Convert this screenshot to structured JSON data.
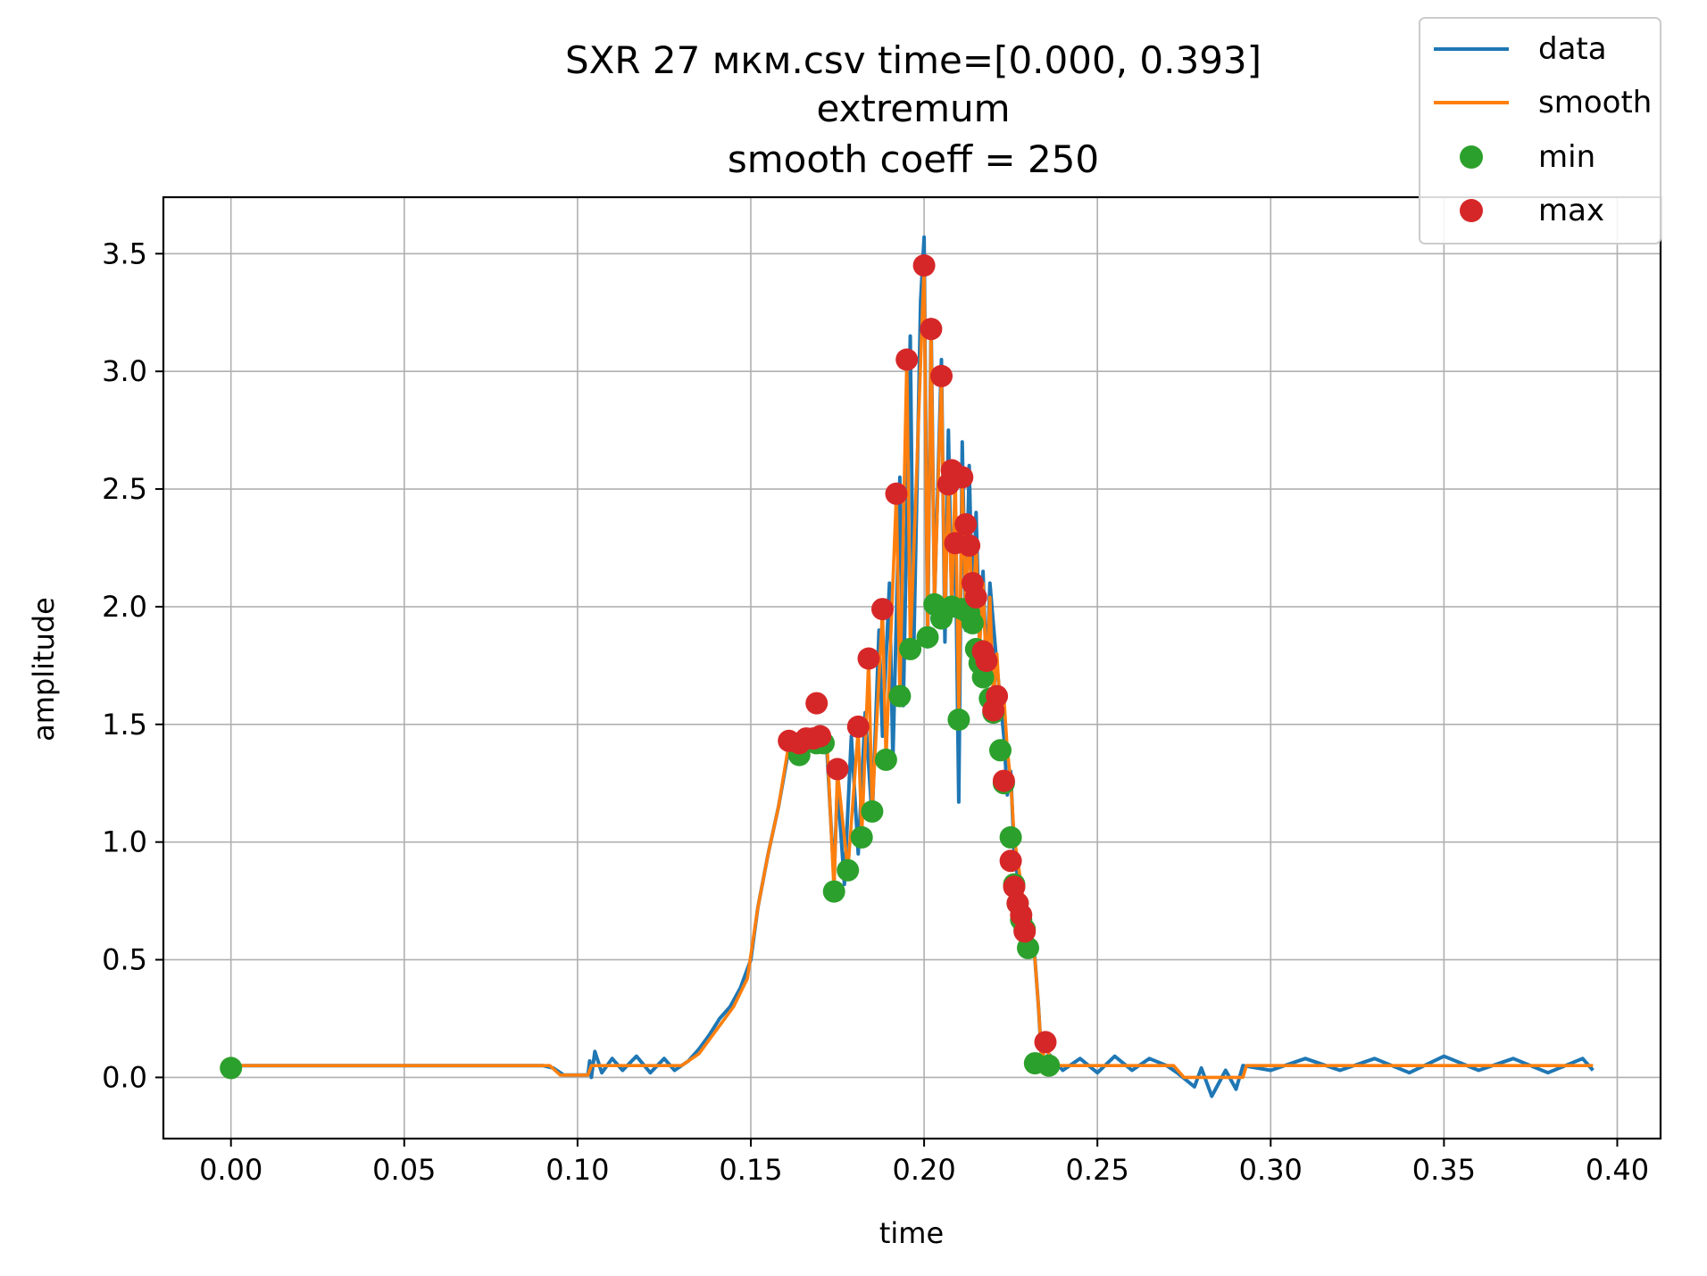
{
  "chart_data": {
    "type": "line",
    "title_lines": [
      "SXR 27 мкм.csv time=[0.000, 0.393]",
      "extremum",
      "smooth coeff = 250"
    ],
    "xlabel": "time",
    "ylabel": "amplitude",
    "xlim": [
      -0.0195,
      0.4125
    ],
    "ylim": [
      -0.26,
      3.74
    ],
    "xticks": [
      0.0,
      0.05,
      0.1,
      0.15,
      0.2,
      0.25,
      0.3,
      0.35,
      0.4
    ],
    "xtick_labels": [
      "0.00",
      "0.05",
      "0.10",
      "0.15",
      "0.20",
      "0.25",
      "0.30",
      "0.35",
      "0.40"
    ],
    "yticks": [
      0.0,
      0.5,
      1.0,
      1.5,
      2.0,
      2.5,
      3.0,
      3.5
    ],
    "ytick_labels": [
      "0.0",
      "0.5",
      "1.0",
      "1.5",
      "2.0",
      "2.5",
      "3.0",
      "3.5"
    ],
    "grid": true,
    "legend_position": "top-right",
    "series": [
      {
        "name": "data",
        "kind": "line",
        "color": "#1f77b4",
        "points": [
          [
            0.0,
            0.05
          ],
          [
            0.03,
            0.05
          ],
          [
            0.06,
            0.05
          ],
          [
            0.09,
            0.05
          ],
          [
            0.093,
            0.04
          ],
          [
            0.096,
            0.01
          ],
          [
            0.103,
            0.01
          ],
          [
            0.1035,
            0.07
          ],
          [
            0.104,
            0.0
          ],
          [
            0.105,
            0.11
          ],
          [
            0.107,
            0.02
          ],
          [
            0.11,
            0.08
          ],
          [
            0.113,
            0.03
          ],
          [
            0.117,
            0.09
          ],
          [
            0.121,
            0.02
          ],
          [
            0.125,
            0.08
          ],
          [
            0.128,
            0.03
          ],
          [
            0.132,
            0.07
          ],
          [
            0.135,
            0.12
          ],
          [
            0.138,
            0.18
          ],
          [
            0.141,
            0.25
          ],
          [
            0.144,
            0.3
          ],
          [
            0.147,
            0.38
          ],
          [
            0.15,
            0.5
          ],
          [
            0.152,
            0.72
          ],
          [
            0.155,
            0.95
          ],
          [
            0.158,
            1.15
          ],
          [
            0.161,
            1.4
          ],
          [
            0.164,
            1.45
          ],
          [
            0.167,
            1.47
          ],
          [
            0.17,
            1.45
          ],
          [
            0.172,
            1.38
          ],
          [
            0.174,
            0.84
          ],
          [
            0.175,
            1.25
          ],
          [
            0.177,
            0.82
          ],
          [
            0.179,
            1.45
          ],
          [
            0.181,
            0.95
          ],
          [
            0.183,
            1.55
          ],
          [
            0.185,
            1.1
          ],
          [
            0.187,
            1.9
          ],
          [
            0.188,
            1.45
          ],
          [
            0.19,
            2.1
          ],
          [
            0.191,
            1.35
          ],
          [
            0.193,
            2.55
          ],
          [
            0.194,
            1.58
          ],
          [
            0.196,
            3.15
          ],
          [
            0.197,
            1.8
          ],
          [
            0.199,
            3.3
          ],
          [
            0.2,
            3.57
          ],
          [
            0.201,
            1.83
          ],
          [
            0.202,
            3.22
          ],
          [
            0.203,
            2.02
          ],
          [
            0.205,
            3.05
          ],
          [
            0.206,
            1.85
          ],
          [
            0.207,
            2.75
          ],
          [
            0.208,
            2.0
          ],
          [
            0.209,
            2.35
          ],
          [
            0.21,
            1.17
          ],
          [
            0.211,
            2.7
          ],
          [
            0.212,
            1.9
          ],
          [
            0.213,
            2.6
          ],
          [
            0.214,
            1.95
          ],
          [
            0.215,
            2.4
          ],
          [
            0.216,
            1.85
          ],
          [
            0.217,
            2.15
          ],
          [
            0.218,
            1.7
          ],
          [
            0.219,
            2.1
          ],
          [
            0.221,
            1.75
          ],
          [
            0.222,
            1.6
          ],
          [
            0.223,
            1.45
          ],
          [
            0.224,
            1.2
          ],
          [
            0.225,
            1.3
          ],
          [
            0.226,
            0.95
          ],
          [
            0.227,
            0.85
          ],
          [
            0.228,
            0.75
          ],
          [
            0.229,
            0.68
          ],
          [
            0.231,
            0.6
          ],
          [
            0.232,
            0.5
          ],
          [
            0.233,
            0.3
          ],
          [
            0.234,
            0.05
          ],
          [
            0.236,
            0.1
          ],
          [
            0.24,
            0.03
          ],
          [
            0.245,
            0.08
          ],
          [
            0.25,
            0.02
          ],
          [
            0.255,
            0.09
          ],
          [
            0.26,
            0.03
          ],
          [
            0.265,
            0.08
          ],
          [
            0.27,
            0.05
          ],
          [
            0.273,
            0.02
          ],
          [
            0.278,
            -0.04
          ],
          [
            0.28,
            0.04
          ],
          [
            0.283,
            -0.08
          ],
          [
            0.287,
            0.03
          ],
          [
            0.29,
            -0.05
          ],
          [
            0.292,
            0.05
          ],
          [
            0.3,
            0.03
          ],
          [
            0.31,
            0.08
          ],
          [
            0.32,
            0.03
          ],
          [
            0.33,
            0.08
          ],
          [
            0.34,
            0.02
          ],
          [
            0.35,
            0.09
          ],
          [
            0.36,
            0.03
          ],
          [
            0.37,
            0.08
          ],
          [
            0.38,
            0.02
          ],
          [
            0.39,
            0.08
          ],
          [
            0.393,
            0.03
          ]
        ]
      },
      {
        "name": "smooth",
        "kind": "line",
        "color": "#ff7f0e",
        "points": [
          [
            0.0,
            0.05
          ],
          [
            0.092,
            0.05
          ],
          [
            0.095,
            0.01
          ],
          [
            0.103,
            0.01
          ],
          [
            0.104,
            0.05
          ],
          [
            0.13,
            0.05
          ],
          [
            0.135,
            0.1
          ],
          [
            0.14,
            0.2
          ],
          [
            0.145,
            0.3
          ],
          [
            0.149,
            0.42
          ],
          [
            0.152,
            0.72
          ],
          [
            0.155,
            0.95
          ],
          [
            0.158,
            1.15
          ],
          [
            0.161,
            1.42
          ],
          [
            0.164,
            1.38
          ],
          [
            0.167,
            1.43
          ],
          [
            0.17,
            1.45
          ],
          [
            0.172,
            1.42
          ],
          [
            0.174,
            0.79
          ],
          [
            0.175,
            1.3
          ],
          [
            0.178,
            0.88
          ],
          [
            0.181,
            1.48
          ],
          [
            0.182,
            1.02
          ],
          [
            0.184,
            1.78
          ],
          [
            0.185,
            1.13
          ],
          [
            0.188,
            1.99
          ],
          [
            0.189,
            1.35
          ],
          [
            0.192,
            2.48
          ],
          [
            0.193,
            1.62
          ],
          [
            0.195,
            3.05
          ],
          [
            0.196,
            1.82
          ],
          [
            0.2,
            3.45
          ],
          [
            0.201,
            1.87
          ],
          [
            0.202,
            3.18
          ],
          [
            0.203,
            2.01
          ],
          [
            0.205,
            2.98
          ],
          [
            0.206,
            1.95
          ],
          [
            0.207,
            2.52
          ],
          [
            0.208,
            2.0
          ],
          [
            0.209,
            2.58
          ],
          [
            0.21,
            1.52
          ],
          [
            0.211,
            2.55
          ],
          [
            0.212,
            1.99
          ],
          [
            0.213,
            2.35
          ],
          [
            0.214,
            1.93
          ],
          [
            0.215,
            2.27
          ],
          [
            0.216,
            1.82
          ],
          [
            0.217,
            2.1
          ],
          [
            0.218,
            1.7
          ],
          [
            0.219,
            2.04
          ],
          [
            0.22,
            1.61
          ],
          [
            0.221,
            1.8
          ],
          [
            0.222,
            1.56
          ],
          [
            0.223,
            1.62
          ],
          [
            0.224,
            1.39
          ],
          [
            0.225,
            1.26
          ],
          [
            0.226,
            1.02
          ],
          [
            0.227,
            0.92
          ],
          [
            0.228,
            0.82
          ],
          [
            0.229,
            0.7
          ],
          [
            0.23,
            0.62
          ],
          [
            0.231,
            0.55
          ],
          [
            0.232,
            0.5
          ],
          [
            0.233,
            0.3
          ],
          [
            0.234,
            0.06
          ],
          [
            0.235,
            0.15
          ],
          [
            0.237,
            0.05
          ],
          [
            0.272,
            0.05
          ],
          [
            0.275,
            0.0
          ],
          [
            0.292,
            0.0
          ],
          [
            0.293,
            0.05
          ],
          [
            0.393,
            0.05
          ]
        ]
      },
      {
        "name": "min",
        "kind": "markers",
        "color": "#2ca02c",
        "points": [
          [
            0.0,
            0.04
          ],
          [
            0.164,
            1.37
          ],
          [
            0.169,
            1.42
          ],
          [
            0.171,
            1.42
          ],
          [
            0.174,
            0.79
          ],
          [
            0.178,
            0.88
          ],
          [
            0.182,
            1.02
          ],
          [
            0.185,
            1.13
          ],
          [
            0.189,
            1.35
          ],
          [
            0.193,
            1.62
          ],
          [
            0.196,
            1.82
          ],
          [
            0.201,
            1.87
          ],
          [
            0.203,
            2.01
          ],
          [
            0.205,
            1.95
          ],
          [
            0.208,
            2.0
          ],
          [
            0.21,
            1.52
          ],
          [
            0.211,
            1.99
          ],
          [
            0.213,
            1.97
          ],
          [
            0.214,
            1.93
          ],
          [
            0.215,
            1.82
          ],
          [
            0.216,
            1.76
          ],
          [
            0.217,
            1.7
          ],
          [
            0.219,
            1.61
          ],
          [
            0.22,
            1.55
          ],
          [
            0.222,
            1.39
          ],
          [
            0.223,
            1.25
          ],
          [
            0.225,
            1.02
          ],
          [
            0.226,
            0.82
          ],
          [
            0.227,
            0.74
          ],
          [
            0.228,
            0.67
          ],
          [
            0.229,
            0.63
          ],
          [
            0.23,
            0.55
          ],
          [
            0.232,
            0.06
          ],
          [
            0.236,
            0.05
          ]
        ]
      },
      {
        "name": "max",
        "kind": "markers",
        "color": "#d62728",
        "points": [
          [
            0.161,
            1.43
          ],
          [
            0.164,
            1.42
          ],
          [
            0.166,
            1.44
          ],
          [
            0.168,
            1.44
          ],
          [
            0.169,
            1.59
          ],
          [
            0.17,
            1.45
          ],
          [
            0.175,
            1.31
          ],
          [
            0.181,
            1.49
          ],
          [
            0.184,
            1.78
          ],
          [
            0.188,
            1.99
          ],
          [
            0.192,
            2.48
          ],
          [
            0.195,
            3.05
          ],
          [
            0.2,
            3.45
          ],
          [
            0.202,
            3.18
          ],
          [
            0.205,
            2.98
          ],
          [
            0.207,
            2.52
          ],
          [
            0.208,
            2.58
          ],
          [
            0.209,
            2.27
          ],
          [
            0.211,
            2.55
          ],
          [
            0.212,
            2.35
          ],
          [
            0.213,
            2.26
          ],
          [
            0.214,
            2.1
          ],
          [
            0.215,
            2.04
          ],
          [
            0.217,
            1.81
          ],
          [
            0.218,
            1.77
          ],
          [
            0.22,
            1.56
          ],
          [
            0.221,
            1.62
          ],
          [
            0.223,
            1.26
          ],
          [
            0.225,
            0.92
          ],
          [
            0.226,
            0.81
          ],
          [
            0.227,
            0.74
          ],
          [
            0.228,
            0.69
          ],
          [
            0.229,
            0.62
          ],
          [
            0.235,
            0.15
          ]
        ]
      }
    ]
  }
}
